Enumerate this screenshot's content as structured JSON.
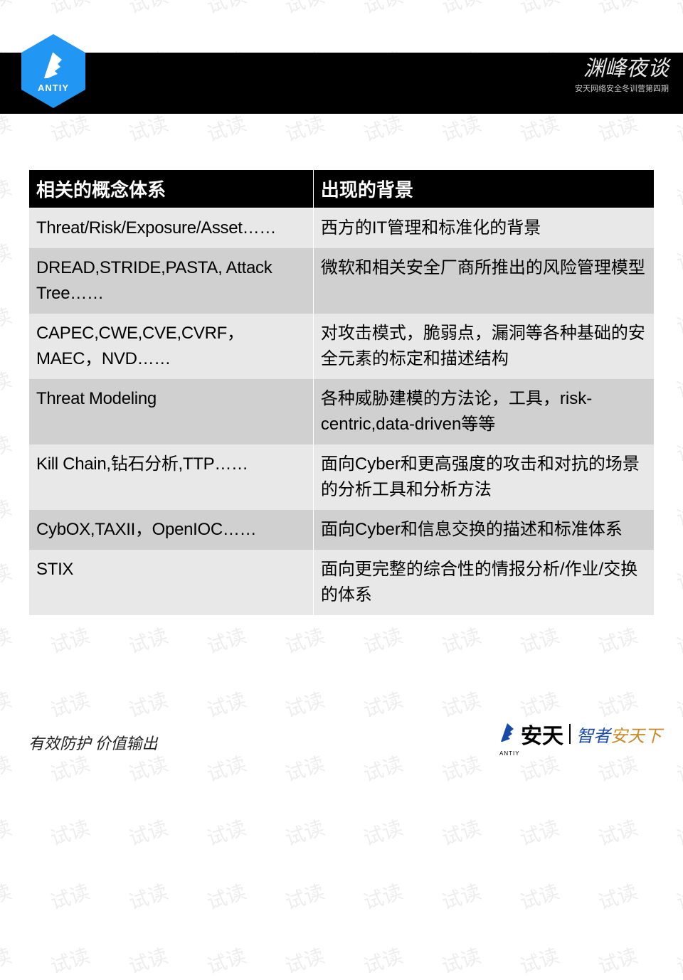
{
  "watermark": {
    "text": "试读",
    "color": "rgba(0,0,0,0.07)",
    "fontsize": 28,
    "rotation_deg": -18
  },
  "header": {
    "logo_text": "ANTIY",
    "logo_bg": "#2196f3",
    "bar_bg": "#000000",
    "script_title": "渊峰夜谈",
    "script_sub": "安天网络安全冬训营第四期"
  },
  "table": {
    "header_bg": "#000000",
    "header_fg": "#ffffff",
    "row_light_bg": "#e8e8e8",
    "row_dark_bg": "#d0d0d0",
    "fontsize": 24,
    "columns": [
      "相关的概念体系",
      "出现的背景"
    ],
    "rows": [
      {
        "left": "Threat/Risk/Exposure/Asset……",
        "right": "西方的IT管理和标准化的背景"
      },
      {
        "left": "DREAD,STRIDE,PASTA, Attack Tree……",
        "right": "微软和相关安全厂商所推出的风险管理模型"
      },
      {
        "left": "CAPEC,CWE,CVE,CVRF，MAEC，NVD……",
        "right": "对攻击模式，脆弱点，漏洞等各种基础的安全元素的标定和描述结构"
      },
      {
        "left": "Threat Modeling",
        "right": "各种威胁建模的方法论，工具，risk-centric,data-driven等等"
      },
      {
        "left": "Kill Chain,钻石分析,TTP……",
        "right": "面向Cyber和更高强度的攻击和对抗的场景的分析工具和分析方法"
      },
      {
        "left": "CybOX,TAXII，OpenIOC……",
        "right": "面向Cyber和信息交换的描述和标准体系"
      },
      {
        "left": "STIX",
        "right": "面向更完整的综合性的情报分析/作业/交换的体系"
      }
    ]
  },
  "footer": {
    "left_text": "有效防护 价值输出",
    "brand": "安天",
    "brand_tiny": "ANTIY",
    "slogan_part1": "智者",
    "slogan_part2": "安天下",
    "slogan_color1": "#1a4aa8",
    "slogan_color2": "#c98a2a"
  }
}
